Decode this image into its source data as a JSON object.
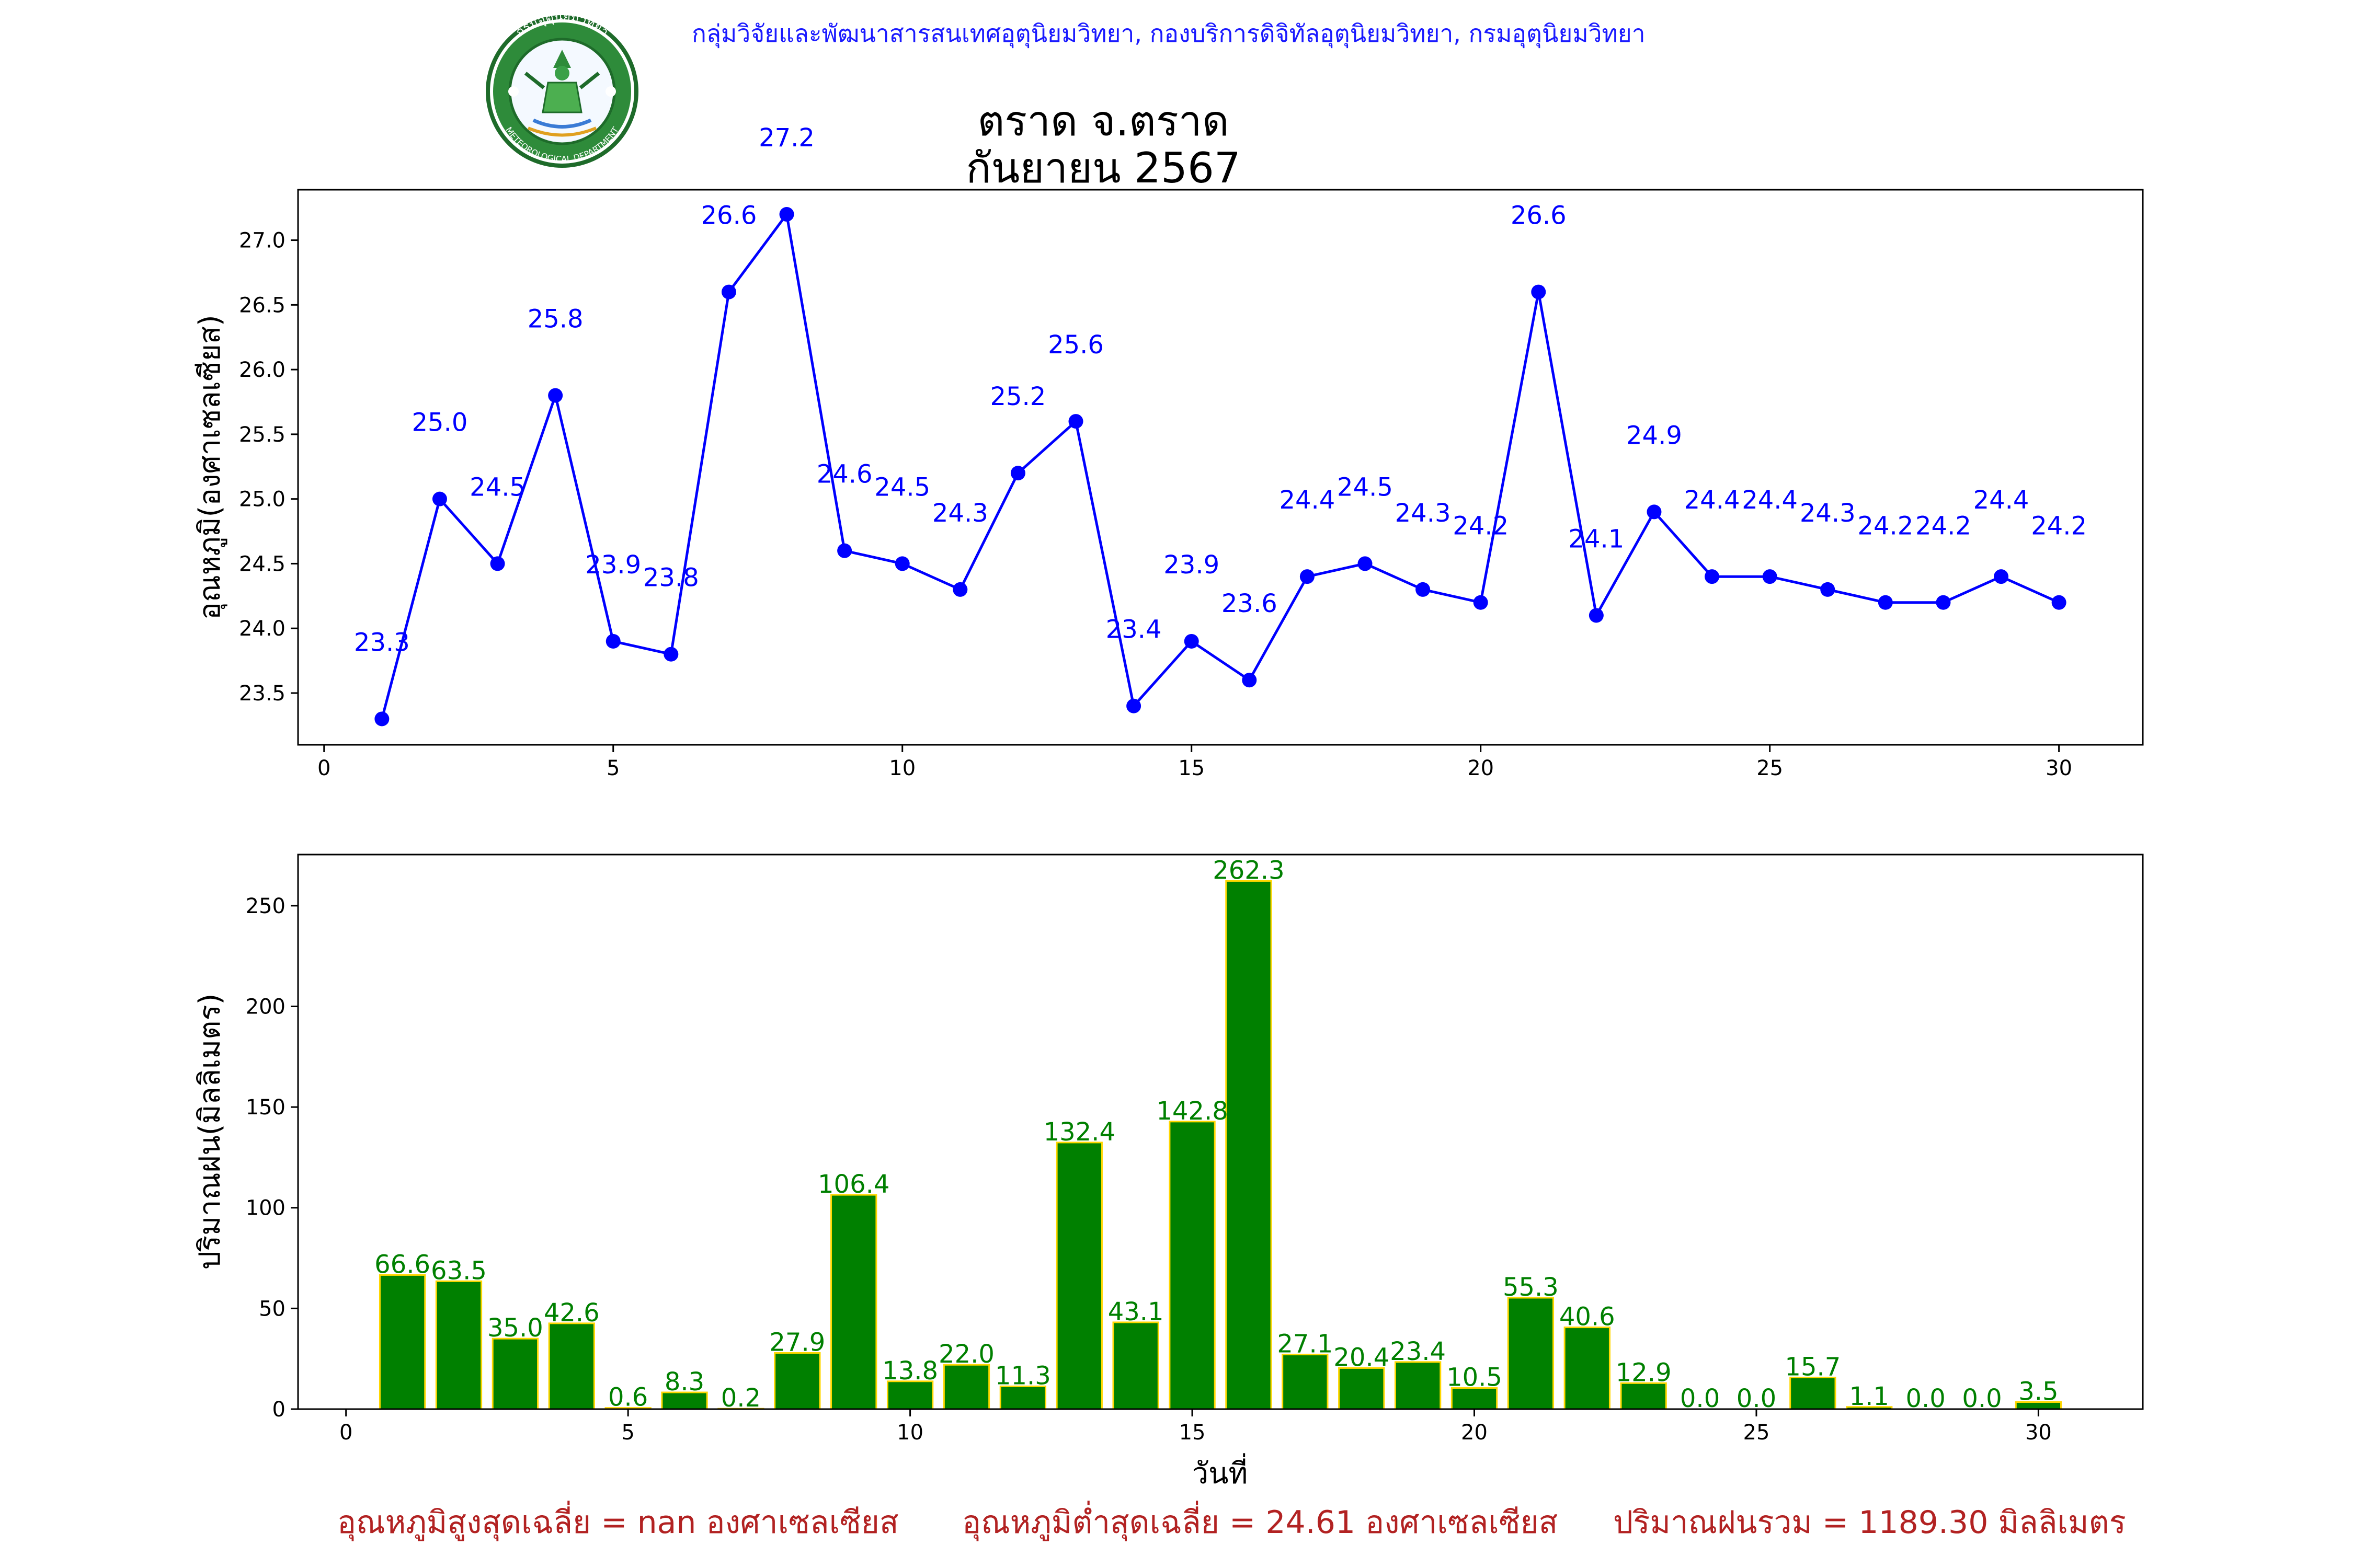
{
  "header": {
    "organization": "กลุ่มวิจัยและพัฒนาสารสนเทศอุตุนิยมวิทยา, กองบริการดิจิทัลอุตุนิยมวิทยา, กรมอุตุนิยมวิทยา",
    "title_line1": "ตราด จ.ตราด",
    "title_line2": "กันยายน 2567",
    "logo_text_top": "กรมอุตุนิยมวิทยา",
    "logo_text_bottom": "METEOROLOGICAL DEPARTMENT"
  },
  "chart_data": [
    {
      "type": "line",
      "ylabel": "อุณหภูมิ(องศาเซลเซียส)",
      "xlabel": "",
      "color": "#0000ff",
      "x": [
        1,
        2,
        3,
        4,
        5,
        6,
        7,
        8,
        9,
        10,
        11,
        12,
        13,
        14,
        15,
        16,
        17,
        18,
        19,
        20,
        21,
        22,
        23,
        24,
        25,
        26,
        27,
        28,
        29,
        30
      ],
      "values": [
        23.3,
        25.0,
        24.5,
        25.8,
        23.9,
        23.8,
        26.6,
        27.2,
        24.6,
        24.5,
        24.3,
        25.2,
        25.6,
        23.4,
        23.9,
        23.6,
        24.4,
        24.5,
        24.3,
        24.2,
        26.6,
        24.1,
        24.9,
        24.4,
        24.4,
        24.3,
        24.2,
        24.2,
        24.4,
        24.2
      ],
      "xlim": [
        -0.45,
        31.45
      ],
      "ylim": [
        23.1,
        27.39
      ],
      "xticks": [
        0,
        5,
        10,
        15,
        20,
        25,
        30
      ],
      "yticks": [
        "23.5",
        "24.0",
        "24.5",
        "25.0",
        "25.5",
        "26.0",
        "26.5",
        "27.0"
      ],
      "grid": false
    },
    {
      "type": "bar",
      "ylabel": "ปริมาณฝน(มิลลิเมตร)",
      "xlabel": "วันที่",
      "bar_color": "#008000",
      "edge_color": "#ffd700",
      "label_color": "#008000",
      "x": [
        1,
        2,
        3,
        4,
        5,
        6,
        7,
        8,
        9,
        10,
        11,
        12,
        13,
        14,
        15,
        16,
        17,
        18,
        19,
        20,
        21,
        22,
        23,
        24,
        25,
        26,
        27,
        28,
        29,
        30
      ],
      "values": [
        66.6,
        63.5,
        35.0,
        42.6,
        0.6,
        8.3,
        0.2,
        27.9,
        106.4,
        13.8,
        22.0,
        11.3,
        132.4,
        43.1,
        142.8,
        262.3,
        27.1,
        20.4,
        23.4,
        10.5,
        55.3,
        40.6,
        12.9,
        0.0,
        0.0,
        15.7,
        1.1,
        0.0,
        0.0,
        3.5
      ],
      "xlim": [
        -0.85,
        31.85
      ],
      "ylim": [
        0,
        275.4
      ],
      "xticks": [
        0,
        5,
        10,
        15,
        20,
        25,
        30
      ],
      "yticks": [
        0,
        50,
        100,
        150,
        200,
        250
      ],
      "grid": false
    }
  ],
  "footer": {
    "avg_max": "อุณหภูมิสูงสุดเฉลี่ย = nan องศาเซลเซียส",
    "avg_min": "อุณหภูมิต่ำสุดเฉลี่ย = 24.61 องศาเซลเซียส",
    "total_rain": "ปริมาณฝนรวม = 1189.30 มิลลิเมตร"
  }
}
